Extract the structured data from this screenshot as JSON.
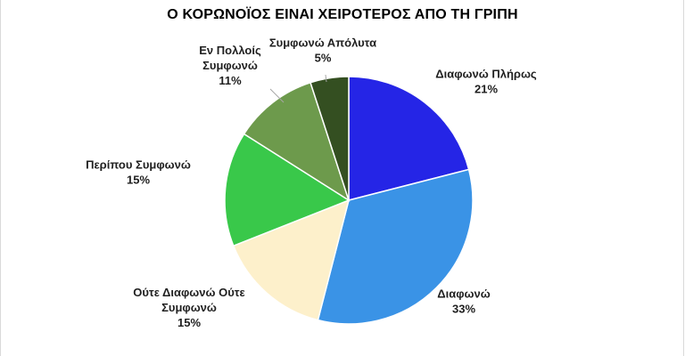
{
  "chart_data": {
    "type": "pie",
    "title": "Ο ΚΟΡΩΝΟΪΟΣ ΕΙΝΑΙ ΧΕΙΡΟΤΕΡΟΣ ΑΠΟ ΤΗ ΓΡΙΠΗ",
    "slices": [
      {
        "label": [
          "Διαφωνώ Πλήρως"
        ],
        "value": 21,
        "value_label": "21%",
        "color": "#2525e6"
      },
      {
        "label": [
          "Διαφωνώ"
        ],
        "value": 33,
        "value_label": "33%",
        "color": "#3a93e6"
      },
      {
        "label": [
          "Ούτε Διαφωνώ Ούτε",
          "Συμφωνώ"
        ],
        "value": 15,
        "value_label": "15%",
        "color": "#fdf0cb"
      },
      {
        "label": [
          "Περίπου Συμφωνώ"
        ],
        "value": 15,
        "value_label": "15%",
        "color": "#39c84a"
      },
      {
        "label": [
          "Εν Πολλοίς",
          "Συμφωνώ"
        ],
        "value": 11,
        "value_label": "11%",
        "color": "#6d9a4c"
      },
      {
        "label": [
          "Συμφωνώ Απόλυτα"
        ],
        "value": 5,
        "value_label": "5%",
        "color": "#344f21"
      }
    ],
    "start_angle_deg": 0,
    "direction": "clockwise",
    "slice_border_color": "#ffffff",
    "leader_line_color": "#a6a6a6"
  }
}
